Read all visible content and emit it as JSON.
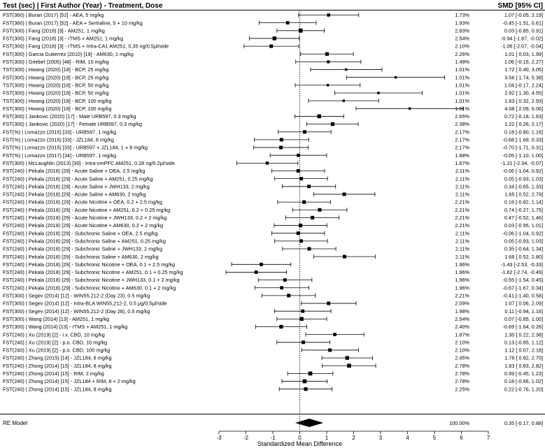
{
  "chart_data": {
    "type": "forest",
    "header": {
      "left": "Test (sec) | First Author (Year) - Treatment, Dose",
      "right": "SMD [95% CI]"
    },
    "xlabel": "Standardized Mean Difference",
    "xlim": [
      -3,
      7
    ],
    "xticks": [
      "-3",
      "-2",
      "-1",
      "0",
      "1",
      "2",
      "3",
      "4",
      "5",
      "6",
      "7"
    ],
    "reference_line": 0,
    "studies": [
      {
        "label": "FST(360) | Buran (2017) [52] - AEA, 5 mg/kg",
        "weight": "1.73%",
        "est": 1.07,
        "lo": -0.05,
        "hi": 2.19,
        "ci": "1.07 [-0.05,  2.19]"
      },
      {
        "label": "FST(360) | Buran (2017) [52] - AEA + Sertraline, 5 + 10 mg/kg",
        "weight": "1.93%",
        "est": -0.45,
        "lo": -1.51,
        "hi": 0.61,
        "ci": "-0.45 [-1.51,  0.61]"
      },
      {
        "label": "FST(300) | Fang (2018) [3] - AM251, 1 mg/kg",
        "weight": "2.83%",
        "est": 0.03,
        "lo": -0.85,
        "hi": 0.91,
        "ci": "0.03 [-0.85,  0.91]"
      },
      {
        "label": "FST(300) | Fang (2018) [3] - rTMS + AM251, 1 mg/kg",
        "weight": "2.54%",
        "est": -0.94,
        "lo": -1.87,
        "hi": -0.02,
        "ci": "-0.94 [-1.87, -0.02]"
      },
      {
        "label": "FST(300) | Fang (2018) [3] - rTMS + Intra-CA1 AM251, 0.35 ng/0.5μl/side",
        "weight": "2.10%",
        "est": -1.06,
        "lo": -2.07,
        "hi": -0.04,
        "ci": "-1.06 [-2.07, -0.04]"
      },
      {
        "label": "FST(300) | Garcia Gutierrez (2010) [19] - AM630, 1 mg/kg",
        "weight": "2.26%",
        "est": 1.01,
        "lo": 0.03,
        "hi": 1.99,
        "ci": "1.01 [ 0.03,  1.99]"
      },
      {
        "label": "FST(300) | Griebel (2005) [48] - RIM, 10 mg/kg",
        "weight": "1.49%",
        "est": 1.06,
        "lo": -0.15,
        "hi": 2.27,
        "ci": "1.06 [-0.15,  2.27]"
      },
      {
        "label": "TST(300) | Hwang (2020) [18] - BCP, 25 mg/kg",
        "weight": "1.01%",
        "est": 1.72,
        "lo": 0.4,
        "hi": 3.05,
        "ci": "1.72 [ 0.40,  3.05]"
      },
      {
        "label": "FST(300) | Hwang (2020) [18] - BCP, 25 mg/kg",
        "weight": "1.01%",
        "est": 3.56,
        "lo": 1.74,
        "hi": 5.38,
        "ci": "3.56 [ 1.74,  5.38]"
      },
      {
        "label": "TST(300) | Hwang (2020) [18] - BCP, 50 mg/kg",
        "weight": "1.01%",
        "est": 1.04,
        "lo": -0.17,
        "hi": 2.24,
        "ci": "1.04 [-0.17,  2.24]"
      },
      {
        "label": "FST(300) | Hwang (2020) [18] - BCP, 50 mg/kg",
        "weight": "1.01%",
        "est": 2.92,
        "lo": 1.3,
        "hi": 4.55,
        "ci": "2.92 [ 1.30,  4.55]"
      },
      {
        "label": "TST(300) | Hwang (2020) [18] - BCP, 100 mg/kg",
        "weight": "1.01%",
        "est": 1.63,
        "lo": 0.32,
        "hi": 2.93,
        "ci": "1.63 [ 0.32,  2.93]"
      },
      {
        "label": "FST(300) | Hwang (2020) [18] - BCP, 100 mg/kg",
        "weight": "1.01%",
        "est": 4.08,
        "lo": 2.09,
        "hi": 6.06,
        "ci": "4.08 [ 2.09,  6.06]"
      },
      {
        "label": "FST(300) | Jankovic (2020) [17] - Male URB597, 0.3 mg/kg",
        "weight": "2.65%",
        "est": 0.72,
        "lo": -0.18,
        "hi": 1.63,
        "ci": "0.72 [-0.18,  1.63]"
      },
      {
        "label": "FST(300) | Jankovic (2020) [17] - Female URB597, 0.3 mg/kg",
        "weight": "2.38%",
        "est": 1.22,
        "lo": 0.26,
        "hi": 2.17,
        "ci": "1.22 [ 0.26,  2.17]"
      },
      {
        "label": "FST(%) | Lomazzo (2015) [33] - URB597, 1 mg/kg",
        "weight": "2.17%",
        "est": 0.18,
        "lo": -0.8,
        "hi": 1.16,
        "ci": "0.18 [-0.80,  1.16]"
      },
      {
        "label": "FST(%) | Lomazzo (2015) [33] - JZL184, 8 mg/kg",
        "weight": "2.17%",
        "est": -0.68,
        "lo": -1.69,
        "hi": 0.33,
        "ci": "-0.68 [-1.69,  0.33]"
      },
      {
        "label": "FST(%) | Lomazzo (2015) [33] - URB597 + JZL184, 1 + 8 mg/kg",
        "weight": "2.17%",
        "est": -0.7,
        "lo": -1.71,
        "hi": 0.31,
        "ci": "-0.70 [-1.71,  0.31]"
      },
      {
        "label": "FST(%) | Lomazzo (2017) [34] - URB597, 1 mg/kg",
        "weight": "1.98%",
        "est": -0.05,
        "lo": -1.1,
        "hi": 1.0,
        "ci": "-0.05 [-1.10,  1.00]"
      },
      {
        "label": "FST(300) | McLaughlin (2013) [30] - Intra-vmPFC AM251, 0.28 ng/0.2μl/side",
        "weight": "1.67%",
        "est": -1.21,
        "lo": -2.34,
        "hi": -0.07,
        "ci": "-1.21 [-2.34, -0.07]"
      },
      {
        "label": "FST(240) | Pekala (2018) [29] - Acute Saline + OEA, 2.5 mg/kg",
        "weight": "2.11%",
        "est": -0.06,
        "lo": -1.04,
        "hi": 0.92,
        "ci": "-0.06 [-1.04,  0.92]"
      },
      {
        "label": "FST(240) | Pekala (2018) [29] - Acute Saline + AM251, 0.25 mg/kg",
        "weight": "2.11%",
        "est": 0.05,
        "lo": -0.93,
        "hi": 1.03,
        "ci": "0.05 [-0.93,  1.03]"
      },
      {
        "label": "FST(240) | Pekala (2018) [29] - Acute Saline + JWH133, 2 mg/kg",
        "weight": "2.11%",
        "est": 0.34,
        "lo": -0.65,
        "hi": 1.33,
        "ci": "0.34 [-0.65,  1.33]"
      },
      {
        "label": "FST(240) | Pekala (2018) [29] - Acute Saline + AM630, 2 mg/kg",
        "weight": "2.11%",
        "est": 1.65,
        "lo": 0.52,
        "hi": 2.79,
        "ci": "1.65 [ 0.52,  2.79]"
      },
      {
        "label": "FST(240) | Pekala (2018) [29] - Acute Nicotine + OEA, 0.2 + 2.5 mg/kg",
        "weight": "2.21%",
        "est": 0.16,
        "lo": -0.82,
        "hi": 1.14,
        "ci": "0.16 [-0.82,  1.14]"
      },
      {
        "label": "FST(240) | Pekala (2018) [29] - Acute Nicotine + AM251, 0.2 + 0.25 mg/kg",
        "weight": "2.21%",
        "est": 0.74,
        "lo": -0.27,
        "hi": 1.75,
        "ci": "0.74 [-0.27,  1.75]"
      },
      {
        "label": "FST(240) | Pekala (2018) [29] - Acute Nicotine + JWH133, 0.2 + 2 mg/kg",
        "weight": "2.21%",
        "est": 0.47,
        "lo": -0.52,
        "hi": 1.46,
        "ci": "0.47 [-0.52,  1.46]"
      },
      {
        "label": "FST(240) | Pekala (2018) [29] - Acute Nicotine + AM630, 0.2 + 2 mg/kg",
        "weight": "2.21%",
        "est": 0.03,
        "lo": -0.95,
        "hi": 1.01,
        "ci": "0.03 [-0.95,  1.01]"
      },
      {
        "label": "FST(240) | Pekala (2018) [29] - Subchronic Saline + OEA, 2.5 mg/kg",
        "weight": "2.11%",
        "est": -0.06,
        "lo": -1.04,
        "hi": 0.92,
        "ci": "-0.06 [-1.04,  0.92]"
      },
      {
        "label": "FST(240) | Pekala (2018) [29] - Subchronic Saline + AM251, 0.25 mg/kg",
        "weight": "2.11%",
        "est": 0.05,
        "lo": -0.93,
        "hi": 1.03,
        "ci": "0.05 [-0.93,  1.03]"
      },
      {
        "label": "FST(240) | Pekala (2018) [29] - Subchronic Saline + JWH133, 2 mg/kg",
        "weight": "2.11%",
        "est": 0.35,
        "lo": -0.64,
        "hi": 1.34,
        "ci": "0.35 [-0.64,  1.34]"
      },
      {
        "label": "FST(240) | Pekala (2018) [29] - Subchronic Saline + AM630, 2 mg/kg",
        "weight": "2.11%",
        "est": 1.66,
        "lo": 0.52,
        "hi": 2.8,
        "ci": "1.66 [ 0.52,  2.80]"
      },
      {
        "label": "FST(240) | Pekala (2018) [29] - Subchronic Nicotine + OEA, 0.1 + 2.5 mg/kg",
        "weight": "1.96%",
        "est": -1.43,
        "lo": -2.53,
        "hi": -0.33,
        "ci": "-1.43 [-2.53, -0.33]"
      },
      {
        "label": "FST(240) | Pekala (2018) [29] - Subchronic Nicotine + AM251, 0.1 + 0.25 mg/kg",
        "weight": "1.96%",
        "est": -1.62,
        "lo": -2.74,
        "hi": -0.49,
        "ci": "-1.62 [-2.74, -0.49]"
      },
      {
        "label": "FST(240) | Pekala (2018) [29] - Subchronic Nicotine + JWH133, 0.1 + 2 mg/kg",
        "weight": "1.96%",
        "est": -0.55,
        "lo": -1.54,
        "hi": 0.45,
        "ci": "-0.55 [-1.54,  0.45]"
      },
      {
        "label": "FST(240) | Pekala (2018) [29] - Subchronic Nicotine + AM630, 0.1 + 2 mg/kg",
        "weight": "1.96%",
        "est": -0.67,
        "lo": -1.67,
        "hi": 0.34,
        "ci": "-0.67 [-1.67,  0.34]"
      },
      {
        "label": "FST(300) | Segev (2014) [12] - WIN55,212-2 (Day 23), 0.5 mg/kg",
        "weight": "2.21%",
        "est": -0.41,
        "lo": -1.4,
        "hi": 0.58,
        "ci": "-0.41 [-1.40,  0.58]"
      },
      {
        "label": "FST(300) | Segev (2014) [12] - Intra-BLA WIN55,212-2, 0.5 μg/0.5μl/side",
        "weight": "2.09%",
        "est": 1.07,
        "lo": 0.06,
        "hi": 2.09,
        "ci": "1.07 [ 0.06,  2.09]"
      },
      {
        "label": "FST(300) | Segev (2014) [12] - WIN55,212-2 (Day 28), 0.5 mg/kg",
        "weight": "1.98%",
        "est": 0.11,
        "lo": -0.94,
        "hi": 1.16,
        "ci": "0.11 [-0.94,  1.16]"
      },
      {
        "label": "FST(300) | Wang (2014) [13] - AM251, 1 mg/kg",
        "weight": "2.54%",
        "est": 0.07,
        "lo": -0.85,
        "hi": 1.0,
        "ci": "0.07 [-0.85,  1.00]"
      },
      {
        "label": "FST(300) | Wang (2014) [13] - rTMS + AM251, 1 mg/kg",
        "weight": "2.40%",
        "est": -0.69,
        "lo": -1.64,
        "hi": 0.26,
        "ci": "-0.69 [-1.64,  0.26]"
      },
      {
        "label": "FST(240) | Xu (2019) [2] - i.v. CBD, 10 mg/kg",
        "weight": "1.87%",
        "est": 1.3,
        "lo": 0.22,
        "hi": 2.38,
        "ci": "1.30 [ 0.22,  2.38]"
      },
      {
        "label": "FST(240) | Xu (2019) [2] - p.o. CBD, 10 mg/kg",
        "weight": "2.10%",
        "est": 0.13,
        "lo": -0.85,
        "hi": 1.12,
        "ci": "0.13 [-0.85,  1.12]"
      },
      {
        "label": "FST(240) | Xu (2019) [2] - p.o. CBD, 100 mg/kg",
        "weight": "2.10%",
        "est": 1.12,
        "lo": 0.07,
        "hi": 2.18,
        "ci": "1.12 [ 0.07,  2.18]"
      },
      {
        "label": "FST(240) | Zhang (2015) [14] - JZL184, 8 mg/kg",
        "weight": "2.45%",
        "est": 1.76,
        "lo": 0.82,
        "hi": 2.7,
        "ci": "1.76 [ 0.82,  2.70]"
      },
      {
        "label": "FST(240) | Zhong (2014) [15] - JZL184, 8 mg/kg",
        "weight": "2.78%",
        "est": 1.83,
        "lo": 0.83,
        "hi": 2.82,
        "ci": "1.83 [ 0.83,  2.82]"
      },
      {
        "label": "FST(240) | Zhong (2014) [15] - RIM, 2 mg/kg",
        "weight": "2.78%",
        "est": 0.39,
        "lo": -0.45,
        "hi": 1.23,
        "ci": "0.39 [-0.45,  1.23]"
      },
      {
        "label": "FST(240) | Zhong (2014) [15] - JZL184 + RIM, 8 + 2 mg/kg",
        "weight": "2.78%",
        "est": 0.18,
        "lo": -0.66,
        "hi": 1.02,
        "ci": "0.18 [-0.66,  1.02]"
      },
      {
        "label": "FST(240) | Zhong (2014) [15] - JZL184, 8 mg/kg",
        "weight": "2.25%",
        "est": 0.22,
        "lo": -0.76,
        "hi": 1.2,
        "ci": "0.22 [-0.76,  1.20]"
      }
    ],
    "summary": {
      "label": "RE Model",
      "weight": "100.00%",
      "est": 0.35,
      "lo": -0.17,
      "hi": 0.88,
      "ci": "0.35 [-0.17,  0.88]"
    }
  }
}
